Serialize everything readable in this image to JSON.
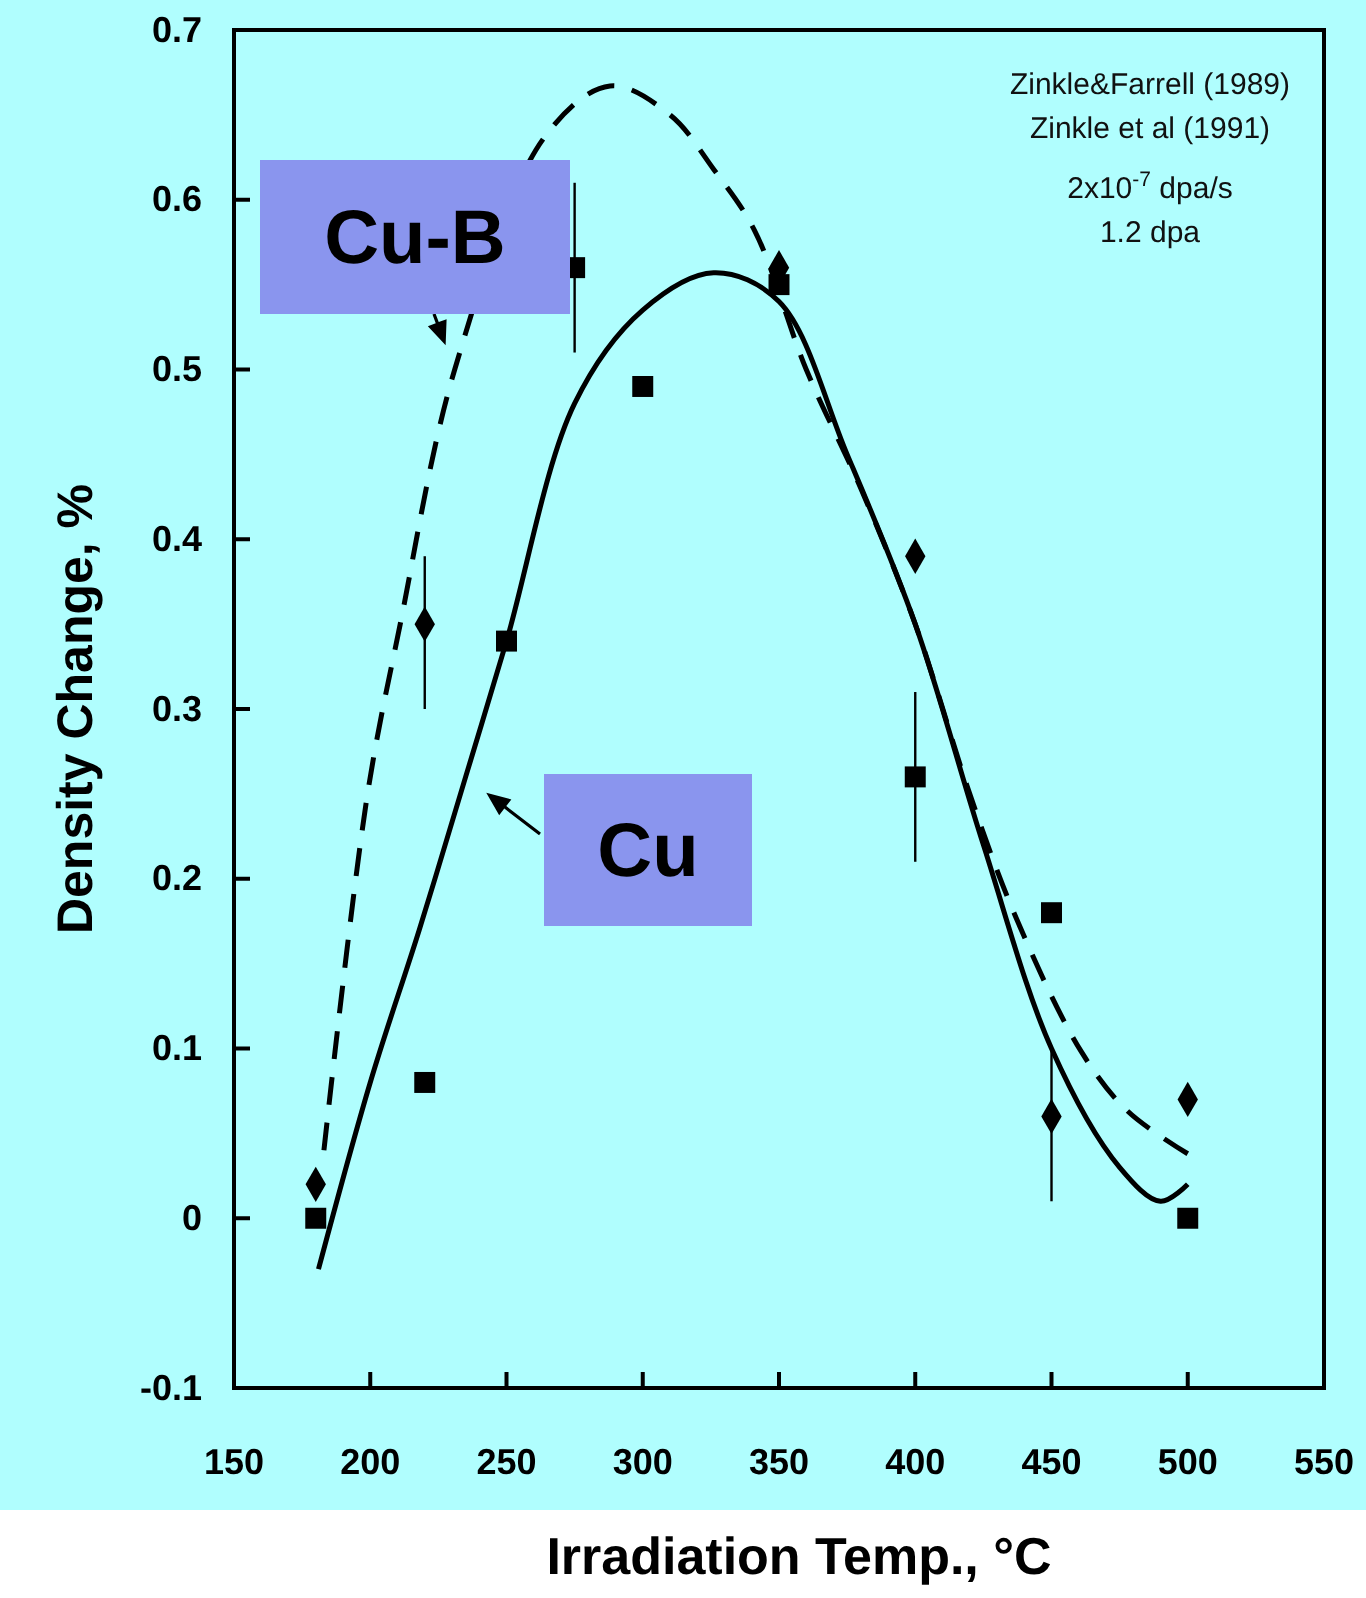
{
  "chart_data": {
    "type": "scatter",
    "xlabel": "Irradiation Temp., °C",
    "ylabel": "Density Change, %",
    "xlim": [
      150,
      550
    ],
    "xticks": [
      150,
      200,
      250,
      300,
      350,
      400,
      450,
      500,
      550
    ],
    "ylim": [
      -0.1,
      0.7
    ],
    "yticks": [
      {
        "value": -0.1,
        "label": "-0.1"
      },
      0,
      0.1,
      0.2,
      0.3,
      0.4,
      0.5,
      0.6,
      0.7
    ],
    "grid": false,
    "legend": "left",
    "annotations": [
      "Zinkle&Farrell (1989)",
      "Zinkle et al (1991)",
      "2x10$^{-7}$ dpa/s",
      "1.2 dpa"
    ],
    "series": [
      {
        "marker": "square",
        "color": "#000000",
        "x": [
          180,
          220,
          250,
          275,
          300,
          350,
          400,
          450,
          500
        ],
        "values": [
          0,
          0.08,
          0.34,
          0.56,
          0.49,
          0.55,
          0.26,
          0.18,
          0
        ],
        "errors": [
          null,
          null,
          null,
          [
            0.51,
            0.61
          ],
          null,
          null,
          [
            0.21,
            0.31
          ],
          null,
          null
        ]
      },
      {
        "marker": "diamond",
        "color": "#000000",
        "x": [
          180,
          220,
          350,
          400,
          450,
          500
        ],
        "values": [
          0.02,
          0.35,
          0.56,
          0.39,
          0.06,
          0.07
        ],
        "errors": [
          null,
          [
            0.3,
            0.39
          ],
          null,
          null,
          [
            0.01,
            0.1
          ],
          null
        ]
      },
      {
        "type": "line",
        "name": "Cu",
        "line_style": "solid",
        "color": "#000000",
        "x": [
          181,
          200,
          218,
          235,
          250,
          275,
          300,
          326,
          350,
          375,
          400,
          425,
          450,
          475,
          490,
          500
        ],
        "values": [
          -0.03,
          0.08,
          0.17,
          0.26,
          0.34,
          0.48,
          0.535,
          0.557,
          0.54,
          0.45,
          0.35,
          0.22,
          0.1,
          0.03,
          0.01,
          0.02
        ]
      },
      {
        "type": "line",
        "name": "Cu-B",
        "line_style": "dashed",
        "color": "#000000",
        "x": [
          183,
          199,
          211,
          231,
          250,
          264,
          288,
          310,
          326,
          341,
          360,
          380,
          400,
          420,
          437,
          461,
          478,
          500
        ],
        "values": [
          0.04,
          0.25,
          0.35,
          0.5,
          null,
          0.637,
          0.667,
          0.65,
          0.618,
          0.582,
          0.5,
          0.43,
          0.35,
          0.25,
          0.177,
          0.098,
          0.063,
          0.038
        ]
      }
    ]
  }
}
